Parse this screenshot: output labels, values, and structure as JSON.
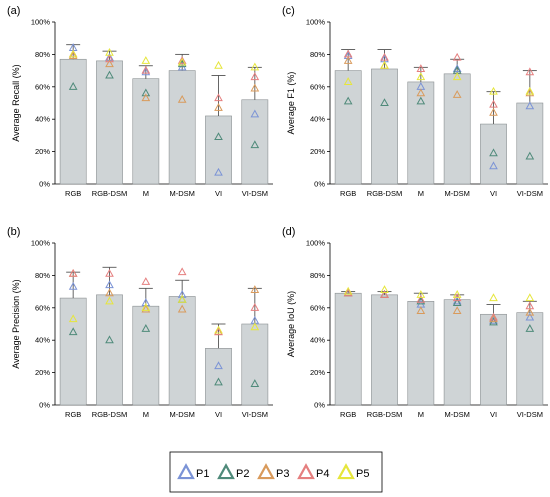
{
  "colors": {
    "bar_fill": "#cfd4d6",
    "bar_stroke": "#8a8f91",
    "P1": "#7b93d6",
    "P2": "#4f8a7a",
    "P3": "#d99a5b",
    "P4": "#e57f7f",
    "P5": "#e6e63c"
  },
  "legend": {
    "entries": [
      "P1",
      "P2",
      "P3",
      "P4",
      "P5"
    ]
  },
  "chart_data": [
    {
      "type": "bar",
      "letter": "(a)",
      "ylabel": "Average Recall (%)",
      "categories": [
        "RGB",
        "RGB-DSM",
        "M",
        "M-DSM",
        "VI",
        "VI-DSM"
      ],
      "ylim": [
        0,
        100
      ],
      "yticks": [
        "0%",
        "20%",
        "40%",
        "60%",
        "80%",
        "100%"
      ],
      "values": [
        77,
        76,
        65,
        70,
        42,
        52
      ],
      "error_high": [
        86,
        82,
        73,
        80,
        67,
        72
      ],
      "series": [
        {
          "name": "P1",
          "values": [
            84,
            78,
            69,
            72,
            7,
            43
          ]
        },
        {
          "name": "P2",
          "values": [
            60,
            67,
            56,
            74,
            29,
            24
          ]
        },
        {
          "name": "P3",
          "values": [
            79,
            74,
            53,
            52,
            47,
            59
          ]
        },
        {
          "name": "P4",
          "values": [
            80,
            77,
            70,
            76,
            53,
            66
          ]
        },
        {
          "name": "P5",
          "values": [
            80,
            81,
            76,
            75,
            73,
            72
          ]
        }
      ]
    },
    {
      "type": "bar",
      "letter": "(c)",
      "ylabel": "Average F1 (%)",
      "categories": [
        "RGB",
        "RGB-DSM",
        "M",
        "M-DSM",
        "VI",
        "VI-DSM"
      ],
      "ylim": [
        0,
        100
      ],
      "yticks": [
        "0%",
        "20%",
        "40%",
        "60%",
        "80%",
        "100%"
      ],
      "values": [
        70,
        71,
        63,
        68,
        37,
        50
      ],
      "error_high": [
        83,
        83,
        72,
        77,
        57,
        70
      ],
      "series": [
        {
          "name": "P1",
          "values": [
            79,
            77,
            60,
            71,
            11,
            48
          ]
        },
        {
          "name": "P2",
          "values": [
            51,
            50,
            51,
            70,
            19,
            17
          ]
        },
        {
          "name": "P3",
          "values": [
            76,
            73,
            56,
            55,
            44,
            56
          ]
        },
        {
          "name": "P4",
          "values": [
            80,
            78,
            71,
            78,
            49,
            69
          ]
        },
        {
          "name": "P5",
          "values": [
            63,
            73,
            66,
            66,
            57,
            57
          ]
        }
      ]
    },
    {
      "type": "bar",
      "letter": "(b)",
      "ylabel": "Average Precision (%)",
      "categories": [
        "RGB",
        "RGB-DSM",
        "M",
        "M-DSM",
        "VI",
        "VI-DSM"
      ],
      "ylim": [
        0,
        100
      ],
      "yticks": [
        "0%",
        "20%",
        "40%",
        "60%",
        "80%",
        "100%"
      ],
      "values": [
        66,
        68,
        61,
        67,
        35,
        50
      ],
      "error_high": [
        82,
        85,
        72,
        77,
        50,
        72
      ],
      "series": [
        {
          "name": "P1",
          "values": [
            73,
            74,
            63,
            68,
            24,
            52
          ]
        },
        {
          "name": "P2",
          "values": [
            45,
            40,
            47,
            65,
            14,
            13
          ]
        },
        {
          "name": "P3",
          "values": [
            81,
            69,
            59,
            59,
            45,
            71
          ]
        },
        {
          "name": "P4",
          "values": [
            81,
            81,
            76,
            82,
            45,
            60
          ]
        },
        {
          "name": "P5",
          "values": [
            53,
            64,
            60,
            65,
            46,
            48
          ]
        }
      ]
    },
    {
      "type": "bar",
      "letter": "(d)",
      "ylabel": "Average IoU (%)",
      "categories": [
        "RGB",
        "RGB-DSM",
        "M",
        "M-DSM",
        "VI",
        "VI-DSM"
      ],
      "ylim": [
        0,
        100
      ],
      "yticks": [
        "0%",
        "20%",
        "40%",
        "60%",
        "80%",
        "100%"
      ],
      "values": [
        69,
        68,
        64,
        65,
        56,
        57
      ],
      "error_high": [
        70,
        70,
        69,
        68,
        62,
        64
      ],
      "series": [
        {
          "name": "P1",
          "values": [
            69,
            68,
            62,
            64,
            52,
            54
          ]
        },
        {
          "name": "P2",
          "values": [
            69,
            68,
            64,
            63,
            51,
            47
          ]
        },
        {
          "name": "P3",
          "values": [
            69,
            68,
            58,
            58,
            53,
            57
          ]
        },
        {
          "name": "P4",
          "values": [
            69,
            68,
            65,
            66,
            54,
            61
          ]
        },
        {
          "name": "P5",
          "values": [
            70,
            71,
            68,
            68,
            66,
            66
          ]
        }
      ]
    }
  ]
}
